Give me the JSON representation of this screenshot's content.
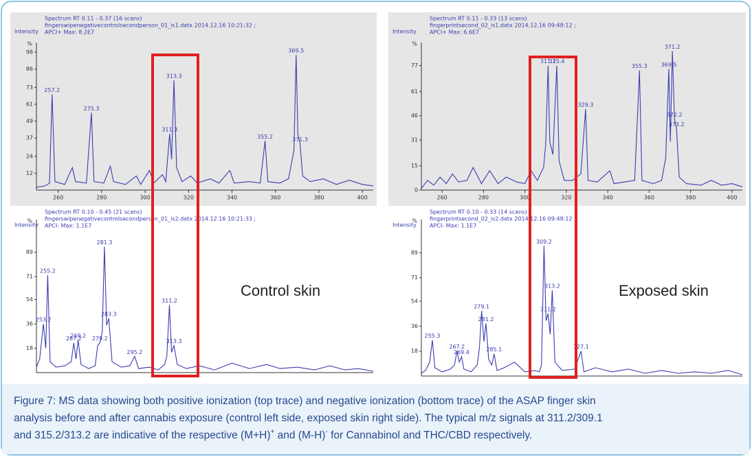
{
  "chart_data": [
    {
      "type": "line",
      "ylabel": "Intensity",
      "title": "Spectrum RT 0.11 - 0.37 (16 scans)",
      "file": "fingerswipenegativecontrolsecondperson_01_is1.datx 2014.12.16 10:21:32 ;",
      "max": "APCI+ Max: 8.2E7",
      "yunit": "%",
      "color": "#3b3bb0",
      "background": "#e6e6e6",
      "xlim": [
        250,
        405
      ],
      "xticks": [
        260,
        280,
        300,
        320,
        340,
        360,
        380,
        400
      ],
      "ylim": [
        0,
        100
      ],
      "yticks": [
        12,
        24,
        37,
        49,
        61,
        73,
        86,
        98
      ],
      "x": [
        250,
        254,
        256,
        257.2,
        258.5,
        263,
        266.5,
        268,
        273,
        275.3,
        276.5,
        281,
        284,
        285.5,
        291,
        296,
        298,
        302,
        304,
        308,
        309.5,
        311.3,
        312.2,
        313.3,
        314.5,
        317,
        321,
        324,
        330,
        334,
        339,
        341,
        348,
        353,
        355.2,
        356.5,
        362,
        366,
        368.5,
        369.5,
        370.3,
        371.3,
        372.5,
        376,
        382,
        388,
        394,
        400,
        405
      ],
      "values": [
        2,
        3,
        5,
        68,
        6,
        4,
        16,
        6,
        5,
        55,
        6,
        5,
        17,
        6,
        4,
        10,
        4,
        14,
        5,
        11,
        6,
        40,
        22,
        78,
        16,
        6,
        10,
        5,
        8,
        5,
        14,
        5,
        6,
        5,
        35,
        6,
        5,
        8,
        28,
        96,
        40,
        33,
        10,
        6,
        8,
        4,
        7,
        4,
        3
      ],
      "peaks": [
        257.2,
        275.3,
        311.3,
        313.3,
        355.2,
        369.5,
        371.3
      ]
    },
    {
      "type": "line",
      "ylabel": "Intensity",
      "title": "Spectrum RT 0.11 - 0.33 (13 scans)",
      "file": "fingerprintsecond_02_is1.datx 2014.12.16 09:48:12 ;",
      "max": "APCI+ Max: 6.6E7",
      "yunit": "%",
      "color": "#3b3bb0",
      "background": "#e6e6e6",
      "xlim": [
        250,
        405
      ],
      "xticks": [
        260,
        280,
        300,
        320,
        340,
        360,
        380,
        400
      ],
      "ylim": [
        0,
        87
      ],
      "yticks": [
        0,
        15,
        31,
        46,
        61,
        77
      ],
      "x": [
        250,
        253,
        256,
        259,
        262,
        265,
        268,
        272,
        275,
        279,
        283,
        287,
        291,
        296,
        300,
        303,
        306,
        309,
        310,
        311.2,
        312,
        313.5,
        315.4,
        316.5,
        319,
        323,
        327,
        329.3,
        330.5,
        335,
        341,
        343,
        348,
        353,
        355.3,
        356.5,
        362,
        366,
        368,
        369.5,
        370.2,
        371.2,
        372.2,
        373.2,
        374.5,
        378,
        385,
        390,
        395,
        400,
        405
      ],
      "values": [
        1,
        6,
        3,
        8,
        4,
        10,
        5,
        6,
        14,
        4,
        12,
        4,
        8,
        5,
        4,
        12,
        6,
        14,
        28,
        77,
        30,
        22,
        77,
        18,
        6,
        6,
        10,
        50,
        6,
        5,
        12,
        4,
        5,
        6,
        74,
        6,
        4,
        6,
        20,
        75,
        30,
        86,
        44,
        38,
        8,
        4,
        3,
        6,
        3,
        4,
        2
      ],
      "peaks": [
        311.2,
        315.4,
        329.3,
        355.3,
        369.5,
        371.2,
        372.2,
        373.2
      ]
    },
    {
      "type": "line",
      "ylabel": "Intensity",
      "title": "Spectrum RT 0.10 - 0.45 (21 scans)",
      "file": "fingerswipenegativecontrolsecondperson_01_is2.datx 2014.12.16 10:21:33 ;",
      "max": "APCI- Max: 1.1E7",
      "yunit": "%",
      "color": "#3b3bb0",
      "background": "#ffffff",
      "annotation": "Control skin",
      "xlim": [
        250,
        405
      ],
      "ylim": [
        0,
        108
      ],
      "yticks": [
        18,
        36,
        54,
        71,
        89
      ],
      "x": [
        250,
        251.5,
        253.2,
        254.3,
        255.2,
        256.3,
        259,
        263,
        266,
        267.2,
        268.2,
        269.2,
        270.5,
        274,
        277,
        278.2,
        279.2,
        280.3,
        281.3,
        282.3,
        283.3,
        284.8,
        289,
        293,
        295.2,
        297,
        302,
        306,
        309,
        310,
        311.2,
        312.2,
        313.3,
        314.8,
        319,
        325,
        332,
        340,
        348,
        356,
        362,
        370,
        378,
        385,
        392,
        398,
        405
      ],
      "values": [
        4,
        10,
        36,
        18,
        72,
        8,
        4,
        5,
        8,
        22,
        10,
        24,
        6,
        3,
        5,
        20,
        22,
        30,
        93,
        35,
        40,
        8,
        4,
        5,
        12,
        3,
        4,
        2,
        6,
        12,
        50,
        15,
        20,
        6,
        3,
        5,
        2,
        7,
        3,
        6,
        3,
        4,
        2,
        5,
        2,
        3,
        1
      ],
      "peaks": [
        253.2,
        255.2,
        267.2,
        269.2,
        279.2,
        281.3,
        283.3,
        295.2,
        311.2,
        313.3
      ]
    },
    {
      "type": "line",
      "ylabel": "Intensity",
      "title": "Spectrum RT 0.10 - 0.33 (14 scans)",
      "file": "fingerprintsecond_02_is2.datx 2014.12.16 09:48:12 ;",
      "max": "APCI- Max: 1.1E7",
      "yunit": "%",
      "color": "#3b3bb0",
      "background": "#ffffff",
      "annotation": "Exposed skin",
      "xlim": [
        250,
        405
      ],
      "ylim": [
        0,
        108
      ],
      "yticks": [
        18,
        36,
        54,
        71,
        89
      ],
      "x": [
        250,
        252,
        254,
        255.3,
        256.5,
        260,
        264,
        266,
        267.2,
        268.3,
        269.4,
        270.5,
        274,
        277,
        278,
        279.1,
        280.2,
        281.2,
        282.5,
        284,
        285.1,
        286.5,
        290,
        295,
        300,
        305,
        307,
        308,
        309.2,
        310.2,
        311.2,
        312.2,
        313.2,
        314.5,
        318,
        324,
        327.1,
        328.5,
        334,
        342,
        350,
        358,
        366,
        374,
        382,
        390,
        398,
        405
      ],
      "values": [
        2,
        4,
        10,
        26,
        6,
        3,
        5,
        8,
        18,
        10,
        14,
        5,
        3,
        8,
        20,
        47,
        25,
        38,
        12,
        8,
        16,
        4,
        6,
        10,
        3,
        4,
        3,
        8,
        94,
        40,
        45,
        30,
        62,
        10,
        4,
        5,
        18,
        3,
        6,
        3,
        5,
        2,
        4,
        2,
        3,
        2,
        4,
        1
      ],
      "peaks": [
        255.3,
        267.2,
        269.4,
        279.1,
        281.2,
        285.1,
        309.2,
        311.2,
        313.2,
        327.1
      ]
    }
  ],
  "caption": {
    "lines": [
      "Figure 7: MS data showing both positive ionization (top trace) and negative ionization (bottom trace) of the ASAP finger skin",
      "analysis before and after cannabis exposure (control left side, exposed skin right side). The typical m/z signals at 311.2/309.1"
    ],
    "last_line": [
      "and 315.2/313.2 are indicative of the respective (M+H)",
      "+",
      " and (M-H)",
      "-",
      " for Cannabinol and THC/CBD respectively."
    ]
  }
}
